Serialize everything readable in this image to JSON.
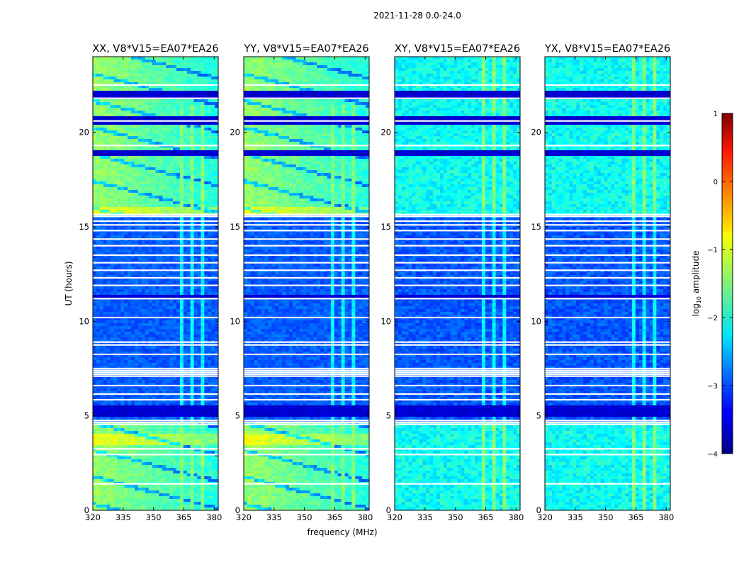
{
  "suptitle": "2021-11-28 0.0-24.0",
  "chart_data": {
    "type": "heatmap",
    "xlabel": "frequency (MHz)",
    "ylabel": "UT (hours)",
    "xlim": [
      320,
      382
    ],
    "ylim": [
      0,
      24
    ],
    "xticks": [
      320,
      335,
      350,
      365,
      380
    ],
    "yticks": [
      0,
      5,
      10,
      15,
      20
    ],
    "panels": [
      {
        "title": "XX, V8*V15=EA07*EA26",
        "pol": "XX",
        "kind": "parallel"
      },
      {
        "title": "YY, V8*V15=EA07*EA26",
        "pol": "YY",
        "kind": "parallel"
      },
      {
        "title": "XY, V8*V15=EA07*EA26",
        "pol": "XY",
        "kind": "cross"
      },
      {
        "title": "YX, V8*V15=EA07*EA26",
        "pol": "YX",
        "kind": "cross"
      }
    ],
    "rfi_band_mhz": [
      363,
      377
    ],
    "flagged_ut_hours": [
      1.4,
      2.95,
      3.25,
      4.55,
      4.65,
      4.75,
      5.85,
      6.15,
      6.6,
      7.1,
      7.2,
      7.3,
      7.4,
      7.5,
      8.25,
      8.75,
      8.9,
      10.2,
      11.2,
      11.9,
      12.3,
      12.7,
      13.1,
      13.5,
      14.0,
      14.35,
      14.8,
      15.1,
      15.3,
      15.55,
      15.65,
      19.3,
      20.6,
      21.8,
      22.5
    ],
    "colorbar": {
      "label": "log10 amplitude",
      "label_main": "log",
      "label_sub": "10",
      "label_rest": " amplitude",
      "min": -4,
      "max": 1,
      "ticks": [
        -4,
        -3,
        -2,
        -1,
        0,
        1
      ],
      "tick_labels": [
        "−4",
        "−3",
        "−2",
        "−1",
        "0",
        "1"
      ],
      "colormap": "jet"
    },
    "tick_labels_x": [
      "320",
      "335",
      "350",
      "365",
      "380"
    ],
    "tick_labels_y": [
      "0",
      "5",
      "10",
      "15",
      "20"
    ]
  }
}
